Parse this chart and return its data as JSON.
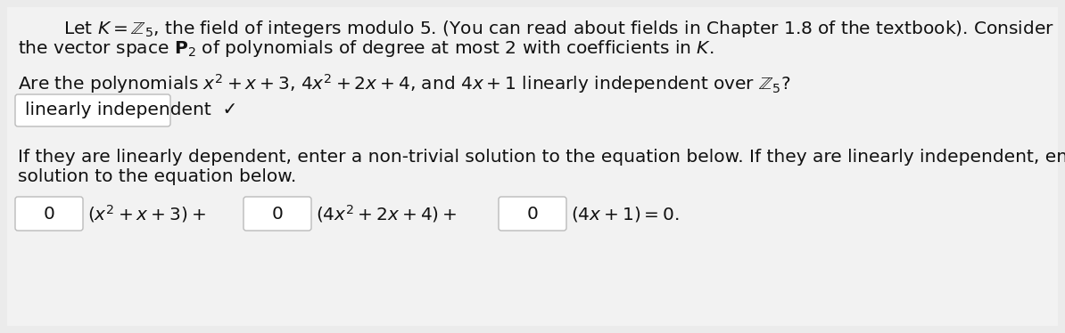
{
  "bg_color": "#ebebeb",
  "panel_color": "#f2f2f2",
  "text_color": "#111111",
  "box_color": "#ffffff",
  "box_border": "#bbbbbb",
  "font_size_main": 14.5,
  "font_size_eq": 14.5,
  "line1a": "        Let $K = \\mathbb{Z}_5$, the field of integers modulo 5. (You can read about fields in Chapter 1.8 of the textbook). Consider",
  "line1b": "the vector space $\\mathbf{P}_2$ of polynomials of degree at most 2 with coefficients in $K$.",
  "line3": "Are the polynomials $x^2 + x + 3$, $4x^2 + 2x + 4$, and $4x + 1$ linearly independent over $\\mathbb{Z}_5$?",
  "dropdown_text": "linearly independent  ✓",
  "line4": "If they are linearly dependent, enter a non-trivial solution to the equation below. If they are linearly independent, enter any",
  "line5": "solution to the equation below.",
  "eq_label1": "$(x^2 + x + 3)+$",
  "eq_label2": "$(4x^2 + 2x + 4)+$",
  "eq_label3": "$(4x + 1) = 0.$",
  "box_value": "0"
}
